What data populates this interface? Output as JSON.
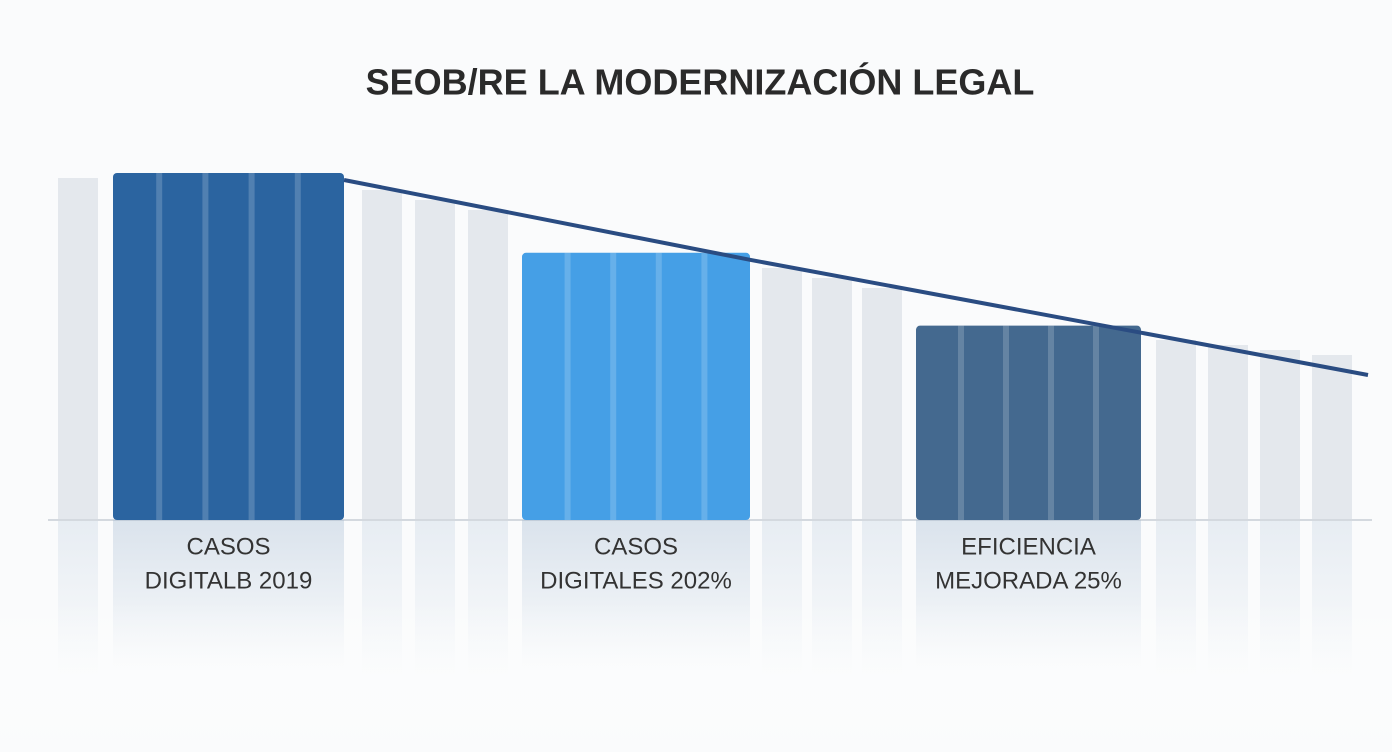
{
  "chart_data": {
    "type": "bar",
    "title": "SEOB/RE LA MODERNIZACIÓN LEGAL",
    "categories": [
      [
        "CASOS",
        "DIGITALB 2019"
      ],
      [
        "CASOS",
        "DIGITALES 202%"
      ],
      [
        "EFICIENCIA",
        "MEJORADA 25%"
      ]
    ],
    "values": [
      100,
      77,
      56
    ],
    "colors": [
      "#2b64a0",
      "#459fe6",
      "#44698f"
    ],
    "ylim": [
      0,
      100
    ]
  }
}
